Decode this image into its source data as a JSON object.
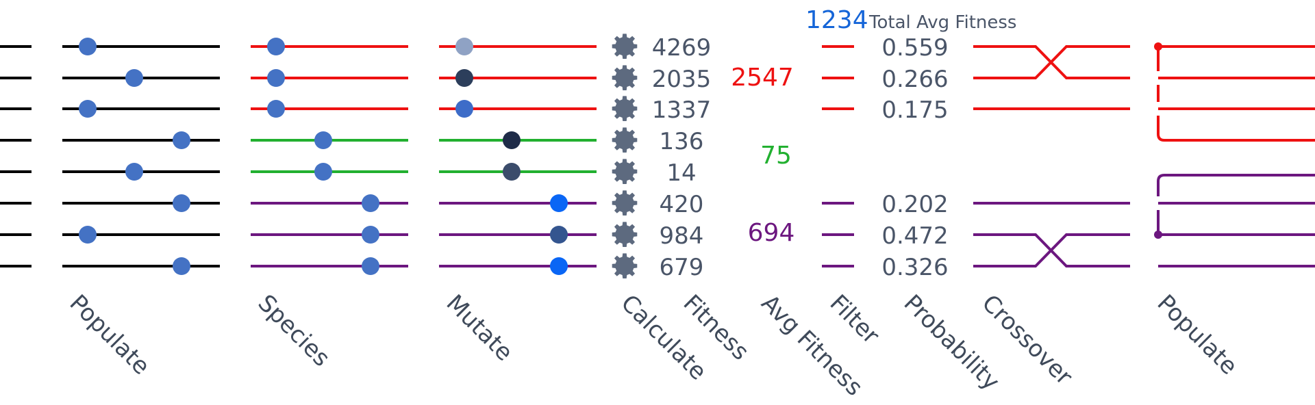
{
  "colors": {
    "black": "#000000",
    "red": "#ee1111",
    "green": "#22b030",
    "purple": "#6c177f",
    "dot": "#4472c4",
    "gear": "#5d6a7f",
    "text": "#4a5568",
    "blue_header": "#1565d8"
  },
  "header": {
    "total_value": "1234",
    "total_label": "Total Avg Fitness"
  },
  "rows": [
    {
      "group": "red",
      "populate_pos": 1,
      "species_pos": 1,
      "mutate_pos": 1,
      "mutate_color": "#8fa2c4",
      "fitness": "4269"
    },
    {
      "group": "red",
      "populate_pos": 2,
      "species_pos": 1,
      "mutate_pos": 1,
      "mutate_color": "#2c3e5b",
      "fitness": "2035"
    },
    {
      "group": "red",
      "populate_pos": 1,
      "species_pos": 1,
      "mutate_pos": 1,
      "mutate_color": "#3d6cc8",
      "fitness": "1337"
    },
    {
      "group": "green",
      "populate_pos": 3,
      "species_pos": 2,
      "mutate_pos": 2,
      "mutate_color": "#1e2b48",
      "fitness": "136"
    },
    {
      "group": "green",
      "populate_pos": 2,
      "species_pos": 2,
      "mutate_pos": 2,
      "mutate_color": "#3b4c6b",
      "fitness": "14"
    },
    {
      "group": "purple",
      "populate_pos": 3,
      "species_pos": 3,
      "mutate_pos": 3,
      "mutate_color": "#0a66f5",
      "fitness": "420"
    },
    {
      "group": "purple",
      "populate_pos": 1,
      "species_pos": 3,
      "mutate_pos": 3,
      "mutate_color": "#34558f",
      "fitness": "984"
    },
    {
      "group": "purple",
      "populate_pos": 3,
      "species_pos": 3,
      "mutate_pos": 3,
      "mutate_color": "#0a66f5",
      "fitness": "679"
    }
  ],
  "avg_fitness": [
    {
      "group": "red",
      "value": "2547"
    },
    {
      "group": "green",
      "value": "75"
    },
    {
      "group": "purple",
      "value": "694"
    }
  ],
  "probabilities": [
    {
      "group": "red",
      "values": [
        "0.559",
        "0.266",
        "0.175"
      ]
    },
    {
      "group": "purple",
      "values": [
        "0.202",
        "0.472",
        "0.326"
      ]
    }
  ],
  "stage_labels": {
    "populate": "Populate",
    "species": "Species",
    "mutate": "Mutate",
    "calculate": "Calculate",
    "fitness": "Fitness",
    "avg_fitness": "Avg Fitness",
    "filter": "Filter",
    "probability": "Probability",
    "crossover": "Crossover",
    "populate_out": "Populate"
  }
}
